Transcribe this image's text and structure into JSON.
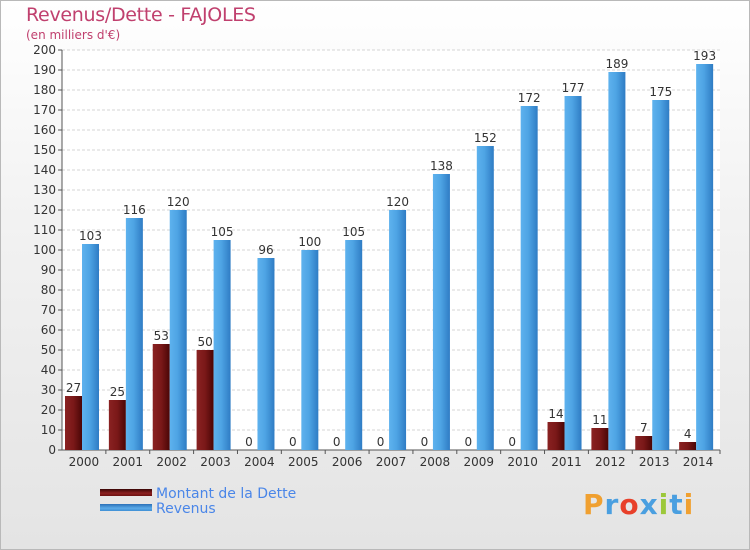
{
  "header": {
    "title": "Revenus/Dette - FAJOLES",
    "subtitle": "(en milliers d'€)"
  },
  "chart_data": {
    "type": "bar",
    "title": "Revenus/Dette - FAJOLES",
    "subtitle": "(en milliers d'€)",
    "categories": [
      "2000",
      "2001",
      "2002",
      "2003",
      "2004",
      "2005",
      "2006",
      "2007",
      "2008",
      "2009",
      "2010",
      "2011",
      "2012",
      "2013",
      "2014"
    ],
    "series": [
      {
        "name": "Montant de la Dette",
        "color": "#7a1a1a",
        "values": [
          27,
          25,
          53,
          50,
          0,
          0,
          0,
          0,
          0,
          0,
          0,
          14,
          11,
          7,
          4
        ]
      },
      {
        "name": "Revenus",
        "color": "#4a9fe0",
        "values": [
          103,
          116,
          120,
          105,
          96,
          100,
          105,
          120,
          138,
          152,
          172,
          177,
          189,
          175,
          193
        ]
      }
    ],
    "ylim": [
      0,
      200
    ],
    "ytick_step": 10,
    "grid": true,
    "legend": "bottom-left"
  },
  "legend": {
    "items": [
      {
        "label": "Montant de la Dette",
        "color": "#6b1010"
      },
      {
        "label": "Revenus",
        "color": "#4a9fe0"
      }
    ]
  },
  "logo": {
    "text": "Proxiti",
    "colors": [
      "#f0a030",
      "#4a9fe0",
      "#e8402a",
      "#4a9fe0",
      "#9cc83a",
      "#4a9fe0",
      "#f0a030"
    ]
  }
}
